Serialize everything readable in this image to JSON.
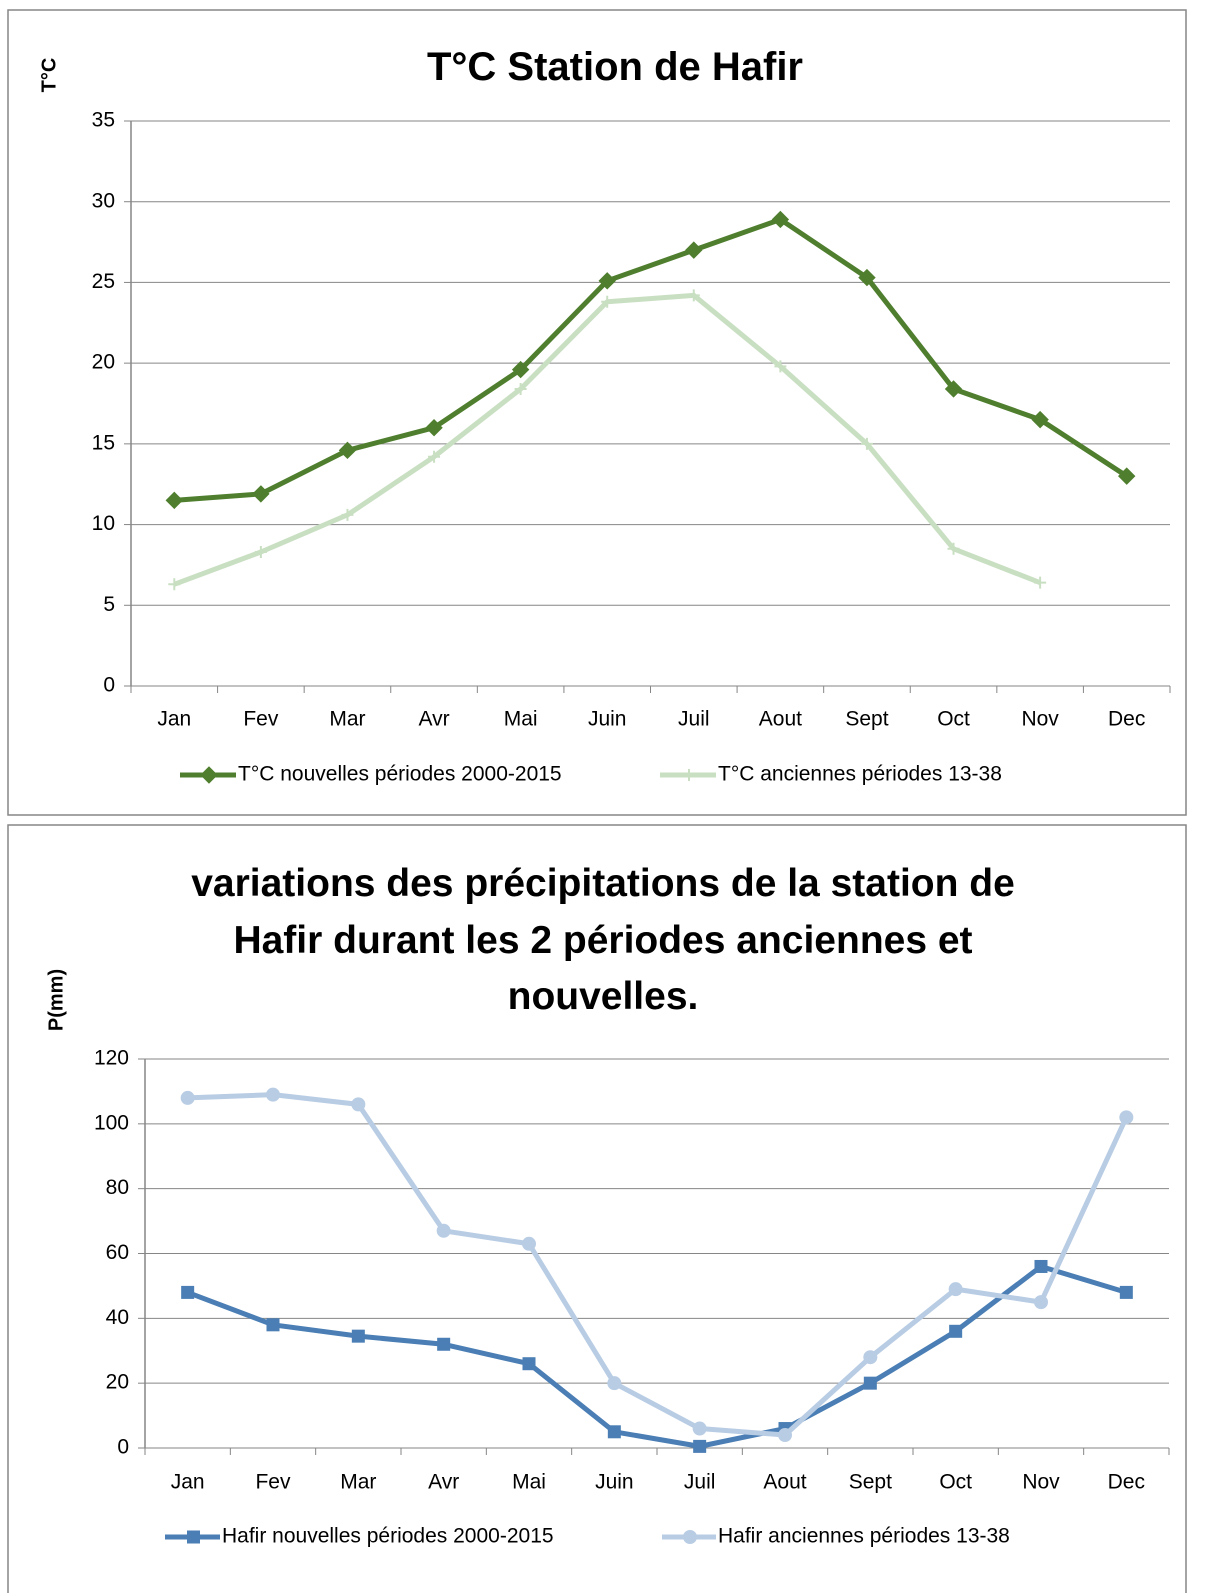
{
  "chart_data": [
    {
      "type": "line",
      "title": "T°C Station de Hafir",
      "y_label": "T°C",
      "categories": [
        "Jan",
        "Fev",
        "Mar",
        "Avr",
        "Mai",
        "Juin",
        "Juil",
        "Aout",
        "Sept",
        "Oct",
        "Nov",
        "Dec"
      ],
      "series": [
        {
          "name": "T°C nouvelles périodes 2000-2015",
          "color": "#4f7f2e",
          "marker": "diamond",
          "values": [
            11.5,
            11.9,
            14.6,
            16.0,
            19.6,
            25.1,
            27.0,
            28.9,
            25.3,
            18.4,
            16.5,
            13.0
          ]
        },
        {
          "name": "T°C anciennes périodes 13-38",
          "color": "#c9dfc2",
          "marker": "plus",
          "values": [
            6.3,
            8.3,
            10.6,
            14.2,
            18.4,
            23.8,
            24.2,
            19.8,
            15.0,
            8.5,
            6.4,
            null
          ]
        }
      ],
      "ylim": [
        0,
        35
      ],
      "yticks": [
        0,
        5,
        10,
        15,
        20,
        25,
        30,
        35
      ],
      "grid": true,
      "legend": "bottom"
    },
    {
      "type": "line",
      "title": "variations des précipitations de la station de Hafir durant les 2 périodes anciennes et nouvelles.",
      "y_label": "P(mm)",
      "categories": [
        "Jan",
        "Fev",
        "Mar",
        "Avr",
        "Mai",
        "Juin",
        "Juil",
        "Aout",
        "Sept",
        "Oct",
        "Nov",
        "Dec"
      ],
      "series": [
        {
          "name": "Hafir nouvelles périodes 2000-2015",
          "color": "#4a7eb4",
          "marker": "square",
          "values": [
            48,
            38,
            34.5,
            32,
            26,
            5,
            0.5,
            6,
            20,
            36,
            56,
            48
          ]
        },
        {
          "name": "Hafir anciennes périodes 13-38",
          "color": "#b8cce4",
          "marker": "circle",
          "values": [
            108,
            109,
            106,
            67,
            63,
            20,
            6,
            4,
            28,
            49,
            45,
            102
          ]
        }
      ],
      "ylim": [
        0,
        120
      ],
      "yticks": [
        0,
        20,
        40,
        60,
        80,
        100,
        120
      ],
      "grid": true,
      "legend": "bottom"
    }
  ]
}
